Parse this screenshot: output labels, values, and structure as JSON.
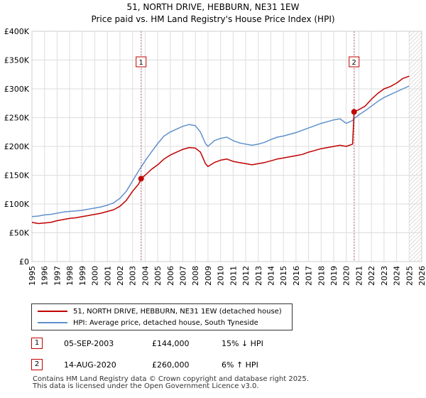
{
  "chart_data": {
    "type": "line",
    "title": "51, NORTH DRIVE, HEBBURN, NE31 1EW",
    "subtitle": "Price paid vs. HM Land Registry's House Price Index (HPI)",
    "xlabel": "",
    "ylabel": "",
    "xlim": [
      1995,
      2026
    ],
    "ylim": [
      0,
      400000
    ],
    "x_ticks": [
      "1995",
      "1996",
      "1997",
      "1998",
      "1999",
      "2000",
      "2001",
      "2002",
      "2003",
      "2004",
      "2005",
      "2006",
      "2007",
      "2008",
      "2009",
      "2010",
      "2011",
      "2012",
      "2013",
      "2014",
      "2015",
      "2016",
      "2017",
      "2018",
      "2019",
      "2020",
      "2021",
      "2022",
      "2023",
      "2024",
      "2025",
      "2026"
    ],
    "y_ticks": [
      0,
      50000,
      100000,
      150000,
      200000,
      250000,
      300000,
      350000,
      400000
    ],
    "y_tick_labels": [
      "£0",
      "£50K",
      "£100K",
      "£150K",
      "£200K",
      "£250K",
      "£300K",
      "£350K",
      "£400K"
    ],
    "grid": true,
    "series": [
      {
        "name": "51, NORTH DRIVE, HEBBURN, NE31 1EW (detached house)",
        "color": "#c00000",
        "points": [
          [
            1995.0,
            68000
          ],
          [
            1995.5,
            66000
          ],
          [
            1996.0,
            67000
          ],
          [
            1996.5,
            68000
          ],
          [
            1997.0,
            71000
          ],
          [
            1997.5,
            73000
          ],
          [
            1998.0,
            75000
          ],
          [
            1998.5,
            76000
          ],
          [
            1999.0,
            78000
          ],
          [
            1999.5,
            80000
          ],
          [
            2000.0,
            82000
          ],
          [
            2000.5,
            84000
          ],
          [
            2001.0,
            87000
          ],
          [
            2001.5,
            90000
          ],
          [
            2002.0,
            96000
          ],
          [
            2002.5,
            106000
          ],
          [
            2003.0,
            122000
          ],
          [
            2003.5,
            135000
          ],
          [
            2003.68,
            144000
          ],
          [
            2004.0,
            150000
          ],
          [
            2004.5,
            160000
          ],
          [
            2005.0,
            168000
          ],
          [
            2005.5,
            178000
          ],
          [
            2006.0,
            185000
          ],
          [
            2006.5,
            190000
          ],
          [
            2007.0,
            195000
          ],
          [
            2007.5,
            198000
          ],
          [
            2008.0,
            197000
          ],
          [
            2008.4,
            190000
          ],
          [
            2008.8,
            170000
          ],
          [
            2009.0,
            165000
          ],
          [
            2009.5,
            172000
          ],
          [
            2010.0,
            176000
          ],
          [
            2010.5,
            178000
          ],
          [
            2011.0,
            174000
          ],
          [
            2011.5,
            172000
          ],
          [
            2012.0,
            170000
          ],
          [
            2012.5,
            168000
          ],
          [
            2013.0,
            170000
          ],
          [
            2013.5,
            172000
          ],
          [
            2014.0,
            175000
          ],
          [
            2014.5,
            178000
          ],
          [
            2015.0,
            180000
          ],
          [
            2015.5,
            182000
          ],
          [
            2016.0,
            184000
          ],
          [
            2016.5,
            186000
          ],
          [
            2017.0,
            190000
          ],
          [
            2017.5,
            193000
          ],
          [
            2018.0,
            196000
          ],
          [
            2018.5,
            198000
          ],
          [
            2019.0,
            200000
          ],
          [
            2019.5,
            202000
          ],
          [
            2020.0,
            200000
          ],
          [
            2020.5,
            204000
          ],
          [
            2020.62,
            260000
          ],
          [
            2021.0,
            264000
          ],
          [
            2021.5,
            270000
          ],
          [
            2022.0,
            282000
          ],
          [
            2022.5,
            292000
          ],
          [
            2023.0,
            300000
          ],
          [
            2023.5,
            304000
          ],
          [
            2024.0,
            310000
          ],
          [
            2024.5,
            318000
          ],
          [
            2025.0,
            322000
          ]
        ]
      },
      {
        "name": "HPI: Average price, detached house, South Tyneside",
        "color": "#6090cc",
        "points": [
          [
            1995.0,
            78000
          ],
          [
            1995.5,
            79000
          ],
          [
            1996.0,
            81000
          ],
          [
            1996.5,
            82000
          ],
          [
            1997.0,
            84000
          ],
          [
            1997.5,
            86000
          ],
          [
            1998.0,
            87000
          ],
          [
            1998.5,
            88000
          ],
          [
            1999.0,
            89000
          ],
          [
            1999.5,
            91000
          ],
          [
            2000.0,
            93000
          ],
          [
            2000.5,
            95000
          ],
          [
            2001.0,
            98000
          ],
          [
            2001.5,
            102000
          ],
          [
            2002.0,
            110000
          ],
          [
            2002.5,
            122000
          ],
          [
            2003.0,
            140000
          ],
          [
            2003.5,
            158000
          ],
          [
            2004.0,
            175000
          ],
          [
            2004.5,
            190000
          ],
          [
            2005.0,
            205000
          ],
          [
            2005.5,
            218000
          ],
          [
            2006.0,
            225000
          ],
          [
            2006.5,
            230000
          ],
          [
            2007.0,
            235000
          ],
          [
            2007.5,
            238000
          ],
          [
            2008.0,
            236000
          ],
          [
            2008.4,
            225000
          ],
          [
            2008.8,
            205000
          ],
          [
            2009.0,
            200000
          ],
          [
            2009.5,
            210000
          ],
          [
            2010.0,
            214000
          ],
          [
            2010.5,
            216000
          ],
          [
            2011.0,
            210000
          ],
          [
            2011.5,
            206000
          ],
          [
            2012.0,
            204000
          ],
          [
            2012.5,
            202000
          ],
          [
            2013.0,
            204000
          ],
          [
            2013.5,
            207000
          ],
          [
            2014.0,
            212000
          ],
          [
            2014.5,
            216000
          ],
          [
            2015.0,
            218000
          ],
          [
            2015.5,
            221000
          ],
          [
            2016.0,
            224000
          ],
          [
            2016.5,
            228000
          ],
          [
            2017.0,
            232000
          ],
          [
            2017.5,
            236000
          ],
          [
            2018.0,
            240000
          ],
          [
            2018.5,
            243000
          ],
          [
            2019.0,
            246000
          ],
          [
            2019.5,
            248000
          ],
          [
            2020.0,
            240000
          ],
          [
            2020.5,
            245000
          ],
          [
            2020.62,
            248000
          ],
          [
            2021.0,
            255000
          ],
          [
            2021.5,
            262000
          ],
          [
            2022.0,
            270000
          ],
          [
            2022.5,
            278000
          ],
          [
            2023.0,
            285000
          ],
          [
            2023.5,
            290000
          ],
          [
            2024.0,
            295000
          ],
          [
            2024.5,
            300000
          ],
          [
            2025.0,
            305000
          ]
        ]
      }
    ],
    "sales": [
      {
        "label": "1",
        "x": 2003.68,
        "y": 144000
      },
      {
        "label": "2",
        "x": 2020.62,
        "y": 260000
      }
    ],
    "shaded_spans": [
      [
        2003.68,
        2003.68
      ],
      [
        2020.62,
        2020.62
      ]
    ],
    "hatched_from": 2025.0
  },
  "legend": {
    "property_label": "51, NORTH DRIVE, HEBBURN, NE31 1EW (detached house)",
    "hpi_label": "HPI: Average price, detached house, South Tyneside",
    "property_color": "#c00000",
    "hpi_color": "#6090cc"
  },
  "transactions": [
    {
      "num": "1",
      "date": "05-SEP-2003",
      "price": "£144,000",
      "hpi": "15% ↓ HPI"
    },
    {
      "num": "2",
      "date": "14-AUG-2020",
      "price": "£260,000",
      "hpi": "6% ↑ HPI"
    }
  ],
  "footer": {
    "line1": "Contains HM Land Registry data © Crown copyright and database right 2025.",
    "line2": "This data is licensed under the Open Government Licence v3.0."
  }
}
